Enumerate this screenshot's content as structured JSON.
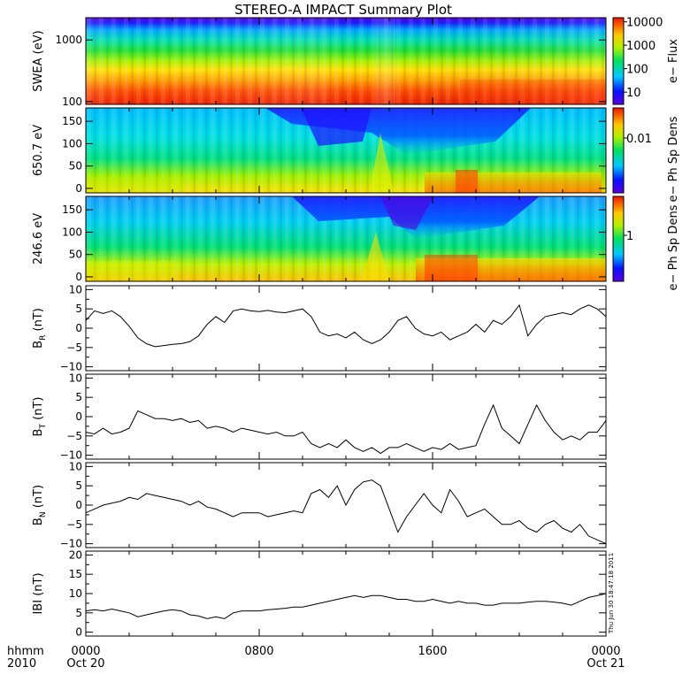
{
  "title": "STEREO-A IMPACT Summary Plot",
  "colors": {
    "axis": "#000000",
    "trace": "#000000"
  },
  "time_axis": {
    "ticks": [
      {
        "hour": 0,
        "label": "0000",
        "sublabel": "Oct 20"
      },
      {
        "hour": 8,
        "label": "0800",
        "sublabel": ""
      },
      {
        "hour": 16,
        "label": "1600",
        "sublabel": ""
      },
      {
        "hour": 24,
        "label": "0000",
        "sublabel": "Oct 21"
      }
    ],
    "minor_hours": [
      2,
      4,
      6,
      10,
      12,
      14,
      18,
      20,
      22
    ],
    "row_label_1": "hhmm",
    "row_label_2": "2010",
    "range_hours": [
      0,
      24
    ]
  },
  "side_note": "Thu Jun 30 18:47:18 2011",
  "chart_data": [
    {
      "type": "heatmap",
      "id": "swea",
      "ylabel": "SWEA (eV)",
      "yscale": "log",
      "ylim": [
        90,
        2300
      ],
      "yticks": [
        {
          "value": 100,
          "label": "100"
        },
        {
          "value": 1000,
          "label": "1000"
        }
      ],
      "colorbar": {
        "label": "e− Flux",
        "scale": "log",
        "range": [
          3,
          15000
        ],
        "ticks": [
          {
            "value": 10000,
            "label": "10000"
          },
          {
            "value": 1000,
            "label": "1000"
          },
          {
            "value": 100,
            "label": "100"
          },
          {
            "value": 10,
            "label": "10"
          }
        ]
      }
    },
    {
      "type": "heatmap",
      "id": "pad650",
      "ylabel": "650.7 eV",
      "ylim": [
        -10,
        180
      ],
      "yticks": [
        {
          "value": 0,
          "label": "0"
        },
        {
          "value": 50,
          "label": "50"
        },
        {
          "value": 100,
          "label": "100"
        },
        {
          "value": 150,
          "label": "150"
        }
      ],
      "colorbar": {
        "label": "e− Ph Sp Dens",
        "ticks": [
          {
            "value": 0.01,
            "label": "0.01"
          }
        ]
      }
    },
    {
      "type": "heatmap",
      "id": "pad246",
      "ylabel": "246.6 eV",
      "ylim": [
        -10,
        180
      ],
      "yticks": [
        {
          "value": 0,
          "label": "0"
        },
        {
          "value": 50,
          "label": "50"
        },
        {
          "value": 100,
          "label": "100"
        },
        {
          "value": 150,
          "label": "150"
        }
      ],
      "colorbar": {
        "label": "e− Ph Sp Dens",
        "ticks": [
          {
            "value": 1,
            "label": "1"
          }
        ]
      }
    },
    {
      "type": "line",
      "id": "br",
      "ylabel_main": "B",
      "ylabel_sub": "R",
      "ylabel_unit": " (nT)",
      "ylim": [
        -11,
        11
      ],
      "yticks": [
        -10,
        -5,
        0,
        5,
        10
      ],
      "ytick_labels": [
        "−10",
        "−5",
        "0",
        "5",
        "10"
      ],
      "x": [
        0,
        0.4,
        0.8,
        1.2,
        1.6,
        2,
        2.4,
        2.8,
        3.2,
        3.6,
        4,
        4.4,
        4.8,
        5.2,
        5.6,
        6,
        6.4,
        6.8,
        7.2,
        7.6,
        8,
        8.4,
        8.8,
        9.2,
        9.6,
        10,
        10.4,
        10.8,
        11.2,
        11.6,
        12,
        12.4,
        12.8,
        13.2,
        13.6,
        14,
        14.4,
        14.8,
        15.2,
        15.6,
        16,
        16.4,
        16.8,
        17.2,
        17.6,
        18,
        18.4,
        18.8,
        19.2,
        19.6,
        20,
        20.4,
        20.8,
        21.2,
        21.6,
        22,
        22.4,
        22.8,
        23.2,
        23.6,
        24
      ],
      "y": [
        2,
        4.5,
        3.8,
        4.5,
        3,
        0.5,
        -2.5,
        -4,
        -4.8,
        -4.5,
        -4.2,
        -4,
        -3.5,
        -2,
        1,
        3,
        1.5,
        4.5,
        5,
        4.5,
        4.3,
        4.6,
        4.2,
        4,
        4.5,
        5,
        3,
        -1,
        -2,
        -1.5,
        -2.5,
        -1,
        -3,
        -4,
        -3,
        -1,
        2,
        3,
        0,
        -1.5,
        -2,
        -1,
        -3,
        -2,
        -1,
        1,
        -1,
        2,
        1,
        3,
        6,
        -2,
        1,
        3,
        3.5,
        4,
        3.5,
        5,
        6,
        5,
        3
      ]
    },
    {
      "type": "line",
      "id": "bt",
      "ylabel_main": "B",
      "ylabel_sub": "T",
      "ylabel_unit": " (nT)",
      "ylim": [
        -11,
        11
      ],
      "yticks": [
        -10,
        -5,
        0,
        5,
        10
      ],
      "ytick_labels": [
        "−10",
        "−5",
        "0",
        "5",
        "10"
      ],
      "x": [
        0,
        0.4,
        0.8,
        1.2,
        1.6,
        2,
        2.4,
        2.8,
        3.2,
        3.6,
        4,
        4.4,
        4.8,
        5.2,
        5.6,
        6,
        6.4,
        6.8,
        7.2,
        7.6,
        8,
        8.4,
        8.8,
        9.2,
        9.6,
        10,
        10.4,
        10.8,
        11.2,
        11.6,
        12,
        12.4,
        12.8,
        13.2,
        13.6,
        14,
        14.4,
        14.8,
        15.2,
        15.6,
        16,
        16.4,
        16.8,
        17.2,
        17.6,
        18,
        18.4,
        18.8,
        19.2,
        19.6,
        20,
        20.4,
        20.8,
        21.2,
        21.6,
        22,
        22.4,
        22.8,
        23.2,
        23.6,
        24
      ],
      "y": [
        -4,
        -4.5,
        -3,
        -4.5,
        -4,
        -3,
        1.5,
        0.5,
        -0.5,
        -0.5,
        -1,
        -0.5,
        -1.5,
        -1,
        -3,
        -2.5,
        -3,
        -4,
        -3,
        -3.5,
        -4,
        -4.5,
        -4,
        -5,
        -5,
        -4,
        -7,
        -8,
        -7,
        -8,
        -6,
        -8,
        -9,
        -8,
        -9.5,
        -8,
        -8,
        -7,
        -8,
        -9,
        -8,
        -8.5,
        -7,
        -8.5,
        -8,
        -7.5,
        -2,
        3,
        -3,
        -5,
        -7,
        -2,
        3,
        -1,
        -4,
        -6,
        -5,
        -6,
        -4,
        -4,
        -1
      ]
    },
    {
      "type": "line",
      "id": "bn",
      "ylabel_main": "B",
      "ylabel_sub": "N",
      "ylabel_unit": " (nT)",
      "ylim": [
        -11,
        11
      ],
      "yticks": [
        -10,
        -5,
        0,
        5,
        10
      ],
      "ytick_labels": [
        "−10",
        "−5",
        "0",
        "5",
        "10"
      ],
      "x": [
        0,
        0.4,
        0.8,
        1.2,
        1.6,
        2,
        2.4,
        2.8,
        3.2,
        3.6,
        4,
        4.4,
        4.8,
        5.2,
        5.6,
        6,
        6.4,
        6.8,
        7.2,
        7.6,
        8,
        8.4,
        8.8,
        9.2,
        9.6,
        10,
        10.4,
        10.8,
        11.2,
        11.6,
        12,
        12.4,
        12.8,
        13.2,
        13.6,
        14,
        14.4,
        14.8,
        15.2,
        15.6,
        16,
        16.4,
        16.8,
        17.2,
        17.6,
        18,
        18.4,
        18.8,
        19.2,
        19.6,
        20,
        20.4,
        20.8,
        21.2,
        21.6,
        22,
        22.4,
        22.8,
        23.2,
        23.6,
        24
      ],
      "y": [
        -2,
        -1,
        0,
        0.5,
        1,
        2,
        1.5,
        3,
        2.5,
        2,
        1.5,
        1,
        0,
        1,
        -0.5,
        -1,
        -2,
        -3,
        -2,
        -2,
        -2,
        -3,
        -2.5,
        -2,
        -1.5,
        -2,
        3,
        4,
        2,
        5,
        0,
        4,
        6,
        6.5,
        5,
        -1,
        -7,
        -3,
        0,
        3,
        0,
        -2,
        4,
        1,
        -3,
        -2,
        -1,
        -3,
        -5,
        -5,
        -4,
        -6,
        -7,
        -5,
        -4,
        -6,
        -7,
        -5,
        -8,
        -9,
        -10
      ]
    },
    {
      "type": "line",
      "id": "bmag",
      "ylabel_main": "IBI",
      "ylabel_sub": "",
      "ylabel_unit": " (nT)",
      "ylim": [
        -1,
        21
      ],
      "yticks": [
        0,
        5,
        10,
        15,
        20
      ],
      "ytick_labels": [
        "0",
        "5",
        "10",
        "15",
        "20"
      ],
      "x": [
        0,
        0.4,
        0.8,
        1.2,
        1.6,
        2,
        2.4,
        2.8,
        3.2,
        3.6,
        4,
        4.4,
        4.8,
        5.2,
        5.6,
        6,
        6.4,
        6.8,
        7.2,
        7.6,
        8,
        8.4,
        8.8,
        9.2,
        9.6,
        10,
        10.4,
        10.8,
        11.2,
        11.6,
        12,
        12.4,
        12.8,
        13.2,
        13.6,
        14,
        14.4,
        14.8,
        15.2,
        15.6,
        16,
        16.4,
        16.8,
        17.2,
        17.6,
        18,
        18.4,
        18.8,
        19.2,
        19.6,
        20,
        20.4,
        20.8,
        21.2,
        21.6,
        22,
        22.4,
        22.8,
        23.2,
        23.6,
        24
      ],
      "y": [
        5.5,
        5.8,
        5.5,
        6,
        5.5,
        5,
        4,
        4.5,
        5,
        5.5,
        5.8,
        5.5,
        4.5,
        4.2,
        3.5,
        4,
        3.5,
        5,
        5.5,
        5.5,
        5.5,
        5.8,
        6,
        6.2,
        6.5,
        6.5,
        7,
        7.5,
        8,
        8.5,
        9,
        9.5,
        9,
        9.5,
        9.5,
        9,
        8.5,
        8.5,
        8,
        8,
        8.5,
        8,
        7.5,
        8,
        7.5,
        7.5,
        7,
        7,
        7.5,
        7.5,
        7.5,
        7.8,
        8,
        8,
        7.8,
        7.5,
        7,
        8,
        9,
        9.5,
        10
      ]
    }
  ]
}
